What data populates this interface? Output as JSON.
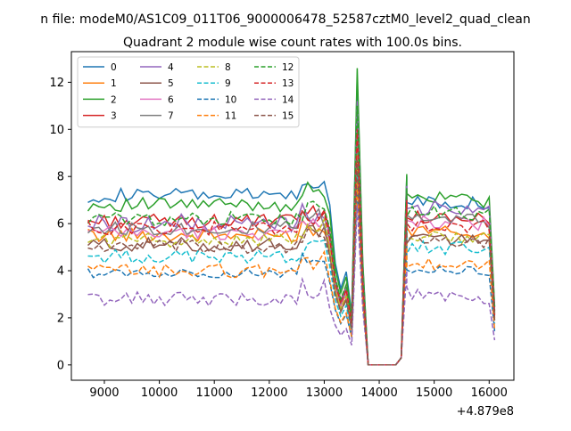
{
  "figure": {
    "suptitle": "n file: modeM0/AS1C09_011T06_9000006478_52587cztM0_level2_quad_clean"
  },
  "chart_data": {
    "type": "line",
    "title": "Quadrant 2 module wise count rates with 100.0s bins.",
    "xlabel": "",
    "ylabel": "",
    "x_offset_label": "+4.879e8",
    "xlim": [
      8400,
      16450
    ],
    "ylim": [
      -0.65,
      13.3
    ],
    "x_ticks": [
      9000,
      10000,
      11000,
      12000,
      13000,
      14000,
      15000,
      16000
    ],
    "y_ticks": [
      0,
      2,
      4,
      6,
      8,
      10,
      12
    ],
    "legend": {
      "placement": "top-left",
      "columns": 4
    },
    "x_segments": [
      {
        "start": 8700,
        "end": 13200,
        "step": 100
      },
      {
        "start": 13300,
        "end": 14500,
        "step": 100
      },
      {
        "start": 14500,
        "end": 16100,
        "step": 100
      }
    ],
    "series": [
      {
        "name": "0",
        "color": "#1f77b4",
        "style": "solid",
        "base": 7.2,
        "spike": 12.2,
        "post": 7.0,
        "amp": 0.3
      },
      {
        "name": "1",
        "color": "#ff7f0e",
        "style": "solid",
        "base": 5.5,
        "spike": 8.6,
        "post": 5.7,
        "amp": 0.3
      },
      {
        "name": "2",
        "color": "#2ca02c",
        "style": "solid",
        "base": 6.8,
        "spike": 12.6,
        "post": 7.1,
        "amp": 0.3
      },
      {
        "name": "3",
        "color": "#d62728",
        "style": "solid",
        "base": 6.1,
        "spike": 10.6,
        "post": 6.3,
        "amp": 0.3
      },
      {
        "name": "4",
        "color": "#9467bd",
        "style": "solid",
        "base": 6.0,
        "spike": 11.2,
        "post": 6.6,
        "amp": 0.4
      },
      {
        "name": "5",
        "color": "#8c564b",
        "style": "solid",
        "base": 5.1,
        "spike": 8.8,
        "post": 5.4,
        "amp": 0.3
      },
      {
        "name": "6",
        "color": "#e377c2",
        "style": "solid",
        "base": 5.6,
        "spike": 9.3,
        "post": 6.1,
        "amp": 0.3
      },
      {
        "name": "7",
        "color": "#7f7f7f",
        "style": "solid",
        "base": 5.8,
        "spike": 9.8,
        "post": 6.2,
        "amp": 0.3
      },
      {
        "name": "8",
        "color": "#bcbd22",
        "style": "dashed",
        "base": 5.3,
        "spike": 8.9,
        "post": 5.5,
        "amp": 0.3
      },
      {
        "name": "9",
        "color": "#17becf",
        "style": "dashed",
        "base": 4.6,
        "spike": 8.1,
        "post": 5.0,
        "amp": 0.3
      },
      {
        "name": "10",
        "color": "#1f77b4",
        "style": "dashed",
        "base": 3.9,
        "spike": 7.6,
        "post": 4.1,
        "amp": 0.2
      },
      {
        "name": "11",
        "color": "#ff7f0e",
        "style": "dashed",
        "base": 4.0,
        "spike": 7.8,
        "post": 4.3,
        "amp": 0.3
      },
      {
        "name": "12",
        "color": "#2ca02c",
        "style": "dashed",
        "base": 6.2,
        "spike": 11.0,
        "post": 6.5,
        "amp": 0.3
      },
      {
        "name": "13",
        "color": "#d62728",
        "style": "dashed",
        "base": 5.8,
        "spike": 10.0,
        "post": 6.0,
        "amp": 0.3
      },
      {
        "name": "14",
        "color": "#9467bd",
        "style": "dashed",
        "base": 2.8,
        "spike": 6.8,
        "post": 3.0,
        "amp": 0.3
      },
      {
        "name": "15",
        "color": "#8c564b",
        "style": "dashed",
        "base": 5.0,
        "spike": 8.7,
        "post": 5.3,
        "amp": 0.3
      }
    ]
  }
}
